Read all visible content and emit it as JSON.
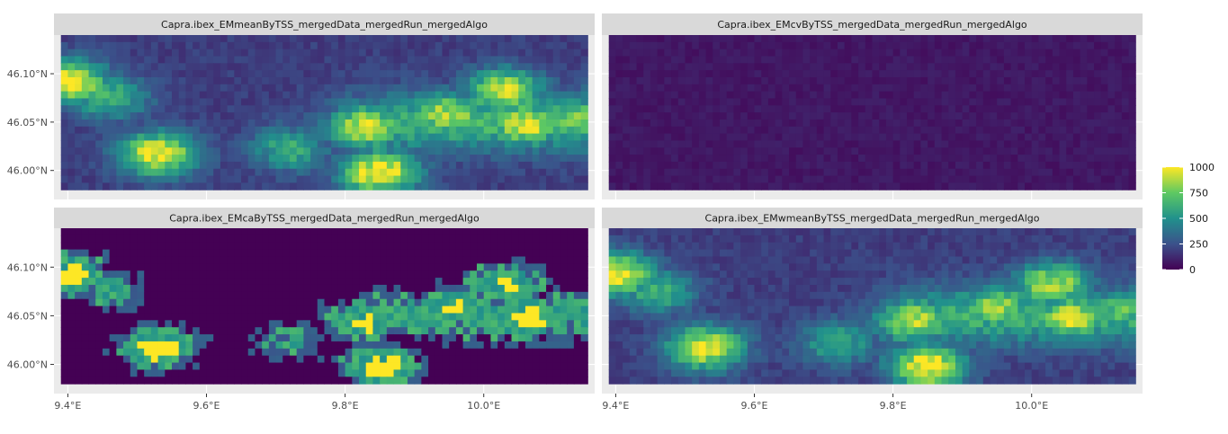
{
  "chart_data": {
    "type": "heatmap",
    "title": "",
    "xlabel": "",
    "ylabel": "",
    "x_ticks": [
      "9.4°E",
      "9.6°E",
      "9.8°E",
      "10.0°E"
    ],
    "x_tick_values": [
      9.4,
      9.6,
      9.8,
      10.0
    ],
    "y_ticks": [
      "46.10°N",
      "46.05°N",
      "46.00°N"
    ],
    "y_tick_values": [
      46.1,
      46.05,
      46.0
    ],
    "xlim": [
      9.38,
      10.16
    ],
    "ylim": [
      45.97,
      46.14
    ],
    "extent": {
      "lon": [
        9.39,
        10.15
      ],
      "lat": [
        45.98,
        46.14
      ]
    },
    "grid": true,
    "colorscale": "viridis",
    "colors": {
      "panel_bg": "#ebebeb",
      "strip_bg": "#d9d9d9",
      "grid": "#ffffff",
      "viridis": [
        "#440154",
        "#3b528b",
        "#21908c",
        "#5dc863",
        "#fde725"
      ]
    },
    "legend": {
      "position": "right",
      "ticks": [
        "1000",
        "750",
        "500",
        "250",
        "0"
      ],
      "tick_values": [
        1000,
        750,
        500,
        250,
        0
      ],
      "range": [
        0,
        1000
      ]
    },
    "panels": [
      {
        "name": "Capra.ibex_EMmeanByTSS_mergedData_mergedRun_mergedAlgo",
        "style": "continuous",
        "base": 140,
        "gain": 1.0,
        "threshold": null
      },
      {
        "name": "Capra.ibex_EMcvByTSS_mergedData_mergedRun_mergedAlgo",
        "style": "uniform-low",
        "base": 40,
        "gain": 0.0,
        "threshold": null
      },
      {
        "name": "Capra.ibex_EMcaByTSS_mergedData_mergedRun_mergedAlgo",
        "style": "binary",
        "base": 0,
        "gain": 1.0,
        "threshold": 380
      },
      {
        "name": "Capra.ibex_EMwmeanByTSS_mergedData_mergedRun_mergedAlgo",
        "style": "continuous",
        "base": 140,
        "gain": 0.95,
        "threshold": null
      }
    ],
    "hotspots": [
      {
        "lon": 9.4,
        "lat": 46.092,
        "value": 1000
      },
      {
        "lon": 9.46,
        "lat": 46.075,
        "value": 550
      },
      {
        "lon": 9.53,
        "lat": 46.017,
        "value": 950
      },
      {
        "lon": 9.72,
        "lat": 46.022,
        "value": 500
      },
      {
        "lon": 9.85,
        "lat": 45.998,
        "value": 1000
      },
      {
        "lon": 9.83,
        "lat": 46.045,
        "value": 850
      },
      {
        "lon": 9.95,
        "lat": 46.058,
        "value": 800
      },
      {
        "lon": 10.03,
        "lat": 46.082,
        "value": 850
      },
      {
        "lon": 10.06,
        "lat": 46.048,
        "value": 900
      },
      {
        "lon": 10.13,
        "lat": 46.055,
        "value": 650
      }
    ]
  }
}
